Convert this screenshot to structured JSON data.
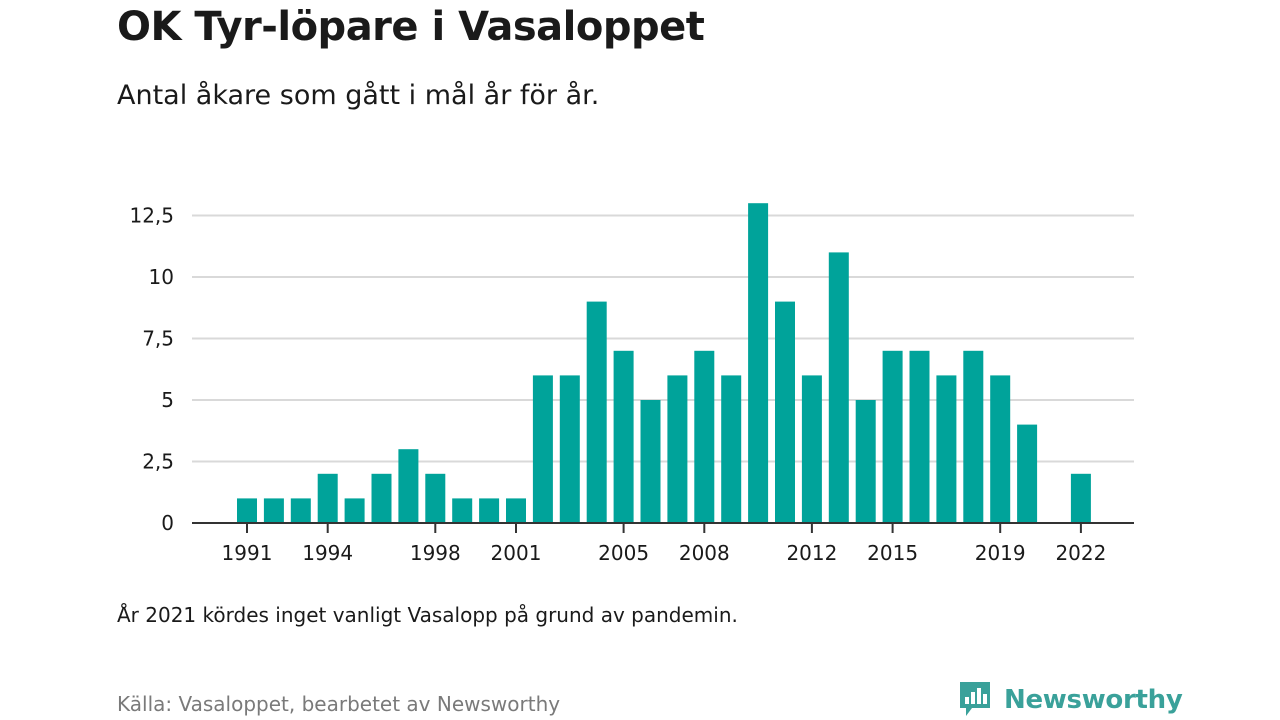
{
  "header": {
    "title": "OK Tyr-löpare i Vasaloppet",
    "subtitle": "Antal åkare som gått i mål år för år."
  },
  "footer": {
    "note": "År 2021 kördes inget vanligt Vasalopp på grund av pandemin.",
    "source": "Källa: Vasaloppet, bearbetet av Newsworthy",
    "brand": "Newsworthy"
  },
  "colors": {
    "bar": "#00a39a",
    "brand": "#3aa19a",
    "grid": "#d9d9d9",
    "axis": "#333333"
  },
  "icons": {
    "brand_logo": "newsworthy-bar-chart-bubble-icon"
  },
  "chart_data": {
    "type": "bar",
    "x": [
      1991,
      1992,
      1993,
      1994,
      1995,
      1996,
      1997,
      1998,
      1999,
      2000,
      2001,
      2002,
      2003,
      2004,
      2005,
      2006,
      2007,
      2008,
      2009,
      2010,
      2011,
      2012,
      2013,
      2014,
      2015,
      2016,
      2017,
      2018,
      2019,
      2020,
      2021,
      2022
    ],
    "values": [
      1,
      1,
      1,
      2,
      1,
      2,
      3,
      2,
      1,
      1,
      1,
      6,
      6,
      9,
      7,
      5,
      6,
      7,
      6,
      13,
      9,
      6,
      11,
      5,
      7,
      7,
      6,
      7,
      6,
      4,
      null,
      2
    ],
    "x_ticks": [
      1991,
      1994,
      1998,
      2001,
      2005,
      2008,
      2012,
      2015,
      2019,
      2022
    ],
    "x_tick_labels": [
      "1991",
      "1994",
      "1998",
      "2001",
      "2005",
      "2008",
      "2012",
      "2015",
      "2019",
      "2022"
    ],
    "y_ticks": [
      0,
      2.5,
      5,
      7.5,
      10,
      12.5
    ],
    "y_tick_labels": [
      "0",
      "2,5",
      "5",
      "7,5",
      "10",
      "12,5"
    ],
    "ylim": [
      0,
      13
    ],
    "xlabel": "",
    "ylabel": "",
    "grid": true,
    "legend": "none"
  }
}
